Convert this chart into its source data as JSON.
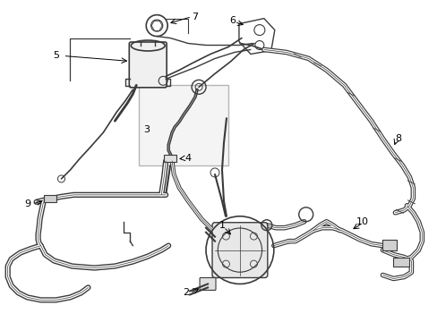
{
  "background_color": "#ffffff",
  "line_color": "#3a3a3a",
  "label_color": "#000000",
  "fig_width": 4.89,
  "fig_height": 3.6,
  "dpi": 100,
  "lw_hose": 1.5,
  "lw_thick": 2.5,
  "lw_thin": 0.8
}
